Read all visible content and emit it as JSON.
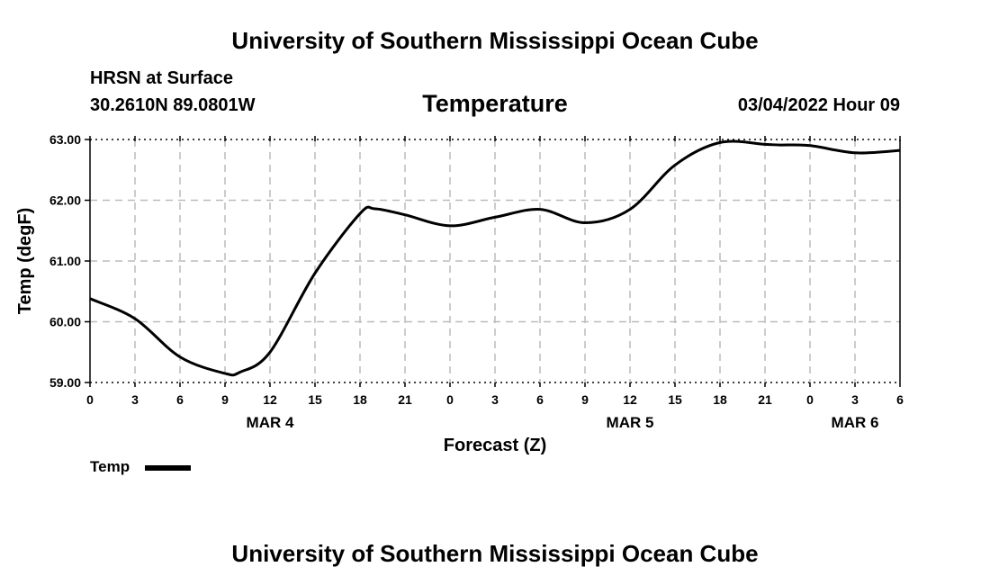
{
  "header": {
    "title": "University of Southern Mississippi Ocean Cube",
    "station": "HRSN at Surface",
    "coordinates": "30.2610N  89.0801W",
    "datetime": "03/04/2022 Hour 09"
  },
  "footer": {
    "title": "University of Southern Mississippi Ocean Cube"
  },
  "chart_data": {
    "type": "line",
    "title": "Temperature",
    "xlabel": "Forecast (Z)",
    "ylabel": "Temp (degF)",
    "ylim": [
      59.0,
      63.0
    ],
    "yticks": [
      "59.00",
      "60.00",
      "61.00",
      "62.00",
      "63.00"
    ],
    "xlim": [
      0,
      54
    ],
    "xtick_labels": [
      "0",
      "3",
      "6",
      "9",
      "12",
      "15",
      "18",
      "21",
      "0",
      "3",
      "6",
      "9",
      "12",
      "15",
      "18",
      "21",
      "0",
      "3",
      "6"
    ],
    "date_labels": [
      {
        "label": "MAR 4",
        "hour": 12
      },
      {
        "label": "MAR 5",
        "hour": 36
      },
      {
        "label": "MAR 6",
        "hour": 51
      }
    ],
    "grid": true,
    "legend": "bottom-left",
    "series": [
      {
        "name": "Temp",
        "color": "#000000",
        "x": [
          0,
          3,
          6,
          9,
          10,
          12,
          15,
          18,
          19,
          21,
          24,
          27,
          30,
          33,
          36,
          39,
          42,
          45,
          46,
          48,
          51,
          54
        ],
        "values": [
          60.38,
          60.05,
          59.42,
          59.15,
          59.17,
          59.5,
          60.8,
          61.78,
          61.86,
          61.76,
          61.58,
          61.72,
          61.85,
          61.63,
          61.85,
          62.58,
          62.95,
          62.92,
          62.91,
          62.9,
          62.78,
          62.82
        ]
      }
    ]
  }
}
